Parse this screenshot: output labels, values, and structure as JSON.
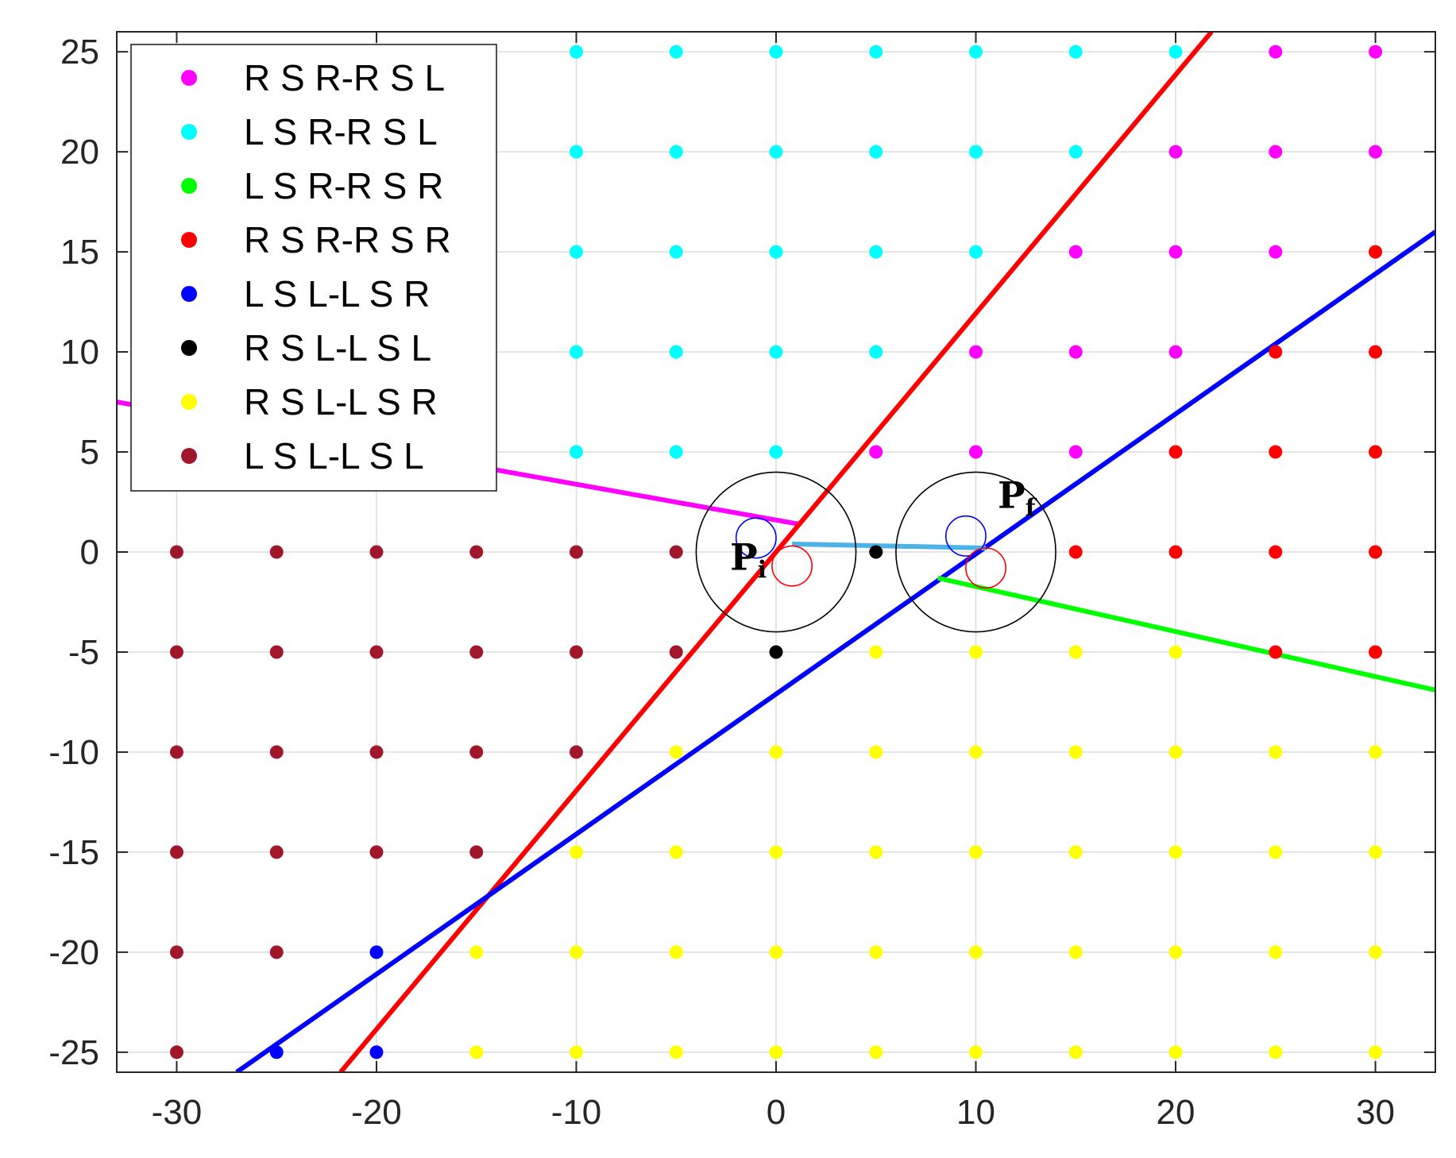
{
  "chart_data": {
    "type": "scatter",
    "xlim": [
      -33,
      33
    ],
    "ylim": [
      -26,
      26
    ],
    "xticks": [
      -30,
      -20,
      -10,
      0,
      10,
      20,
      30
    ],
    "yticks": [
      -25,
      -20,
      -15,
      -10,
      -5,
      0,
      5,
      10,
      15,
      20,
      25
    ],
    "xtick_labels": [
      "-30",
      "-20",
      "-10",
      "0",
      "10",
      "20",
      "30"
    ],
    "ytick_labels": [
      "-25",
      "-20",
      "-15",
      "-10",
      "-5",
      "0",
      "5",
      "10",
      "15",
      "20",
      "25"
    ],
    "grid": true,
    "legend_position": "top-left",
    "series": [
      {
        "name": "R S R-R S L",
        "color": "#ff00ff",
        "points": [
          [
            25,
            25
          ],
          [
            30,
            25
          ],
          [
            20,
            20
          ],
          [
            25,
            20
          ],
          [
            30,
            20
          ],
          [
            15,
            15
          ],
          [
            20,
            15
          ],
          [
            25,
            15
          ],
          [
            10,
            10
          ],
          [
            15,
            10
          ],
          [
            20,
            10
          ],
          [
            5,
            5
          ],
          [
            10,
            5
          ],
          [
            15,
            5
          ]
        ]
      },
      {
        "name": "L S R-R S L",
        "color": "#00ffff",
        "points": [
          [
            -10,
            25
          ],
          [
            -5,
            25
          ],
          [
            0,
            25
          ],
          [
            5,
            25
          ],
          [
            10,
            25
          ],
          [
            15,
            25
          ],
          [
            20,
            25
          ],
          [
            -10,
            20
          ],
          [
            -5,
            20
          ],
          [
            0,
            20
          ],
          [
            5,
            20
          ],
          [
            10,
            20
          ],
          [
            15,
            20
          ],
          [
            -10,
            15
          ],
          [
            -5,
            15
          ],
          [
            0,
            15
          ],
          [
            5,
            15
          ],
          [
            10,
            15
          ],
          [
            -10,
            10
          ],
          [
            -5,
            10
          ],
          [
            0,
            10
          ],
          [
            5,
            10
          ],
          [
            -10,
            5
          ],
          [
            -5,
            5
          ],
          [
            0,
            5
          ]
        ]
      },
      {
        "name": "L S R-R S R",
        "color": "#00ff00",
        "points": []
      },
      {
        "name": "R S R-R S R",
        "color": "#ff0000",
        "points": [
          [
            30,
            15
          ],
          [
            25,
            10
          ],
          [
            30,
            10
          ],
          [
            20,
            5
          ],
          [
            25,
            5
          ],
          [
            30,
            5
          ],
          [
            15,
            0
          ],
          [
            20,
            0
          ],
          [
            25,
            0
          ],
          [
            30,
            0
          ],
          [
            25,
            -5
          ],
          [
            30,
            -5
          ]
        ]
      },
      {
        "name": "L S L-L S R",
        "color": "#0000ff",
        "points": [
          [
            -20,
            -20
          ],
          [
            -25,
            -25
          ],
          [
            -20,
            -25
          ]
        ]
      },
      {
        "name": "R S L-L S L",
        "color": "#000000",
        "points": [
          [
            5,
            0
          ],
          [
            0,
            -5
          ]
        ]
      },
      {
        "name": "R S L-L S R",
        "color": "#ffff00",
        "points": [
          [
            5,
            -5
          ],
          [
            10,
            -5
          ],
          [
            15,
            -5
          ],
          [
            20,
            -5
          ],
          [
            -5,
            -10
          ],
          [
            0,
            -10
          ],
          [
            5,
            -10
          ],
          [
            10,
            -10
          ],
          [
            15,
            -10
          ],
          [
            20,
            -10
          ],
          [
            25,
            -10
          ],
          [
            30,
            -10
          ],
          [
            -10,
            -15
          ],
          [
            -5,
            -15
          ],
          [
            0,
            -15
          ],
          [
            5,
            -15
          ],
          [
            10,
            -15
          ],
          [
            15,
            -15
          ],
          [
            20,
            -15
          ],
          [
            25,
            -15
          ],
          [
            30,
            -15
          ],
          [
            -15,
            -20
          ],
          [
            -10,
            -20
          ],
          [
            -5,
            -20
          ],
          [
            0,
            -20
          ],
          [
            5,
            -20
          ],
          [
            10,
            -20
          ],
          [
            15,
            -20
          ],
          [
            20,
            -20
          ],
          [
            25,
            -20
          ],
          [
            30,
            -20
          ],
          [
            -15,
            -25
          ],
          [
            -10,
            -25
          ],
          [
            -5,
            -25
          ],
          [
            0,
            -25
          ],
          [
            5,
            -25
          ],
          [
            10,
            -25
          ],
          [
            15,
            -25
          ],
          [
            20,
            -25
          ],
          [
            25,
            -25
          ],
          [
            30,
            -25
          ]
        ]
      },
      {
        "name": "L S L-L S L",
        "color": "#a0162b",
        "points": [
          [
            -30,
            0
          ],
          [
            -25,
            0
          ],
          [
            -20,
            0
          ],
          [
            -15,
            0
          ],
          [
            -10,
            0
          ],
          [
            -5,
            0
          ],
          [
            -30,
            -5
          ],
          [
            -25,
            -5
          ],
          [
            -20,
            -5
          ],
          [
            -15,
            -5
          ],
          [
            -10,
            -5
          ],
          [
            -5,
            -5
          ],
          [
            -30,
            -10
          ],
          [
            -25,
            -10
          ],
          [
            -20,
            -10
          ],
          [
            -15,
            -10
          ],
          [
            -10,
            -10
          ],
          [
            -30,
            -15
          ],
          [
            -25,
            -15
          ],
          [
            -20,
            -15
          ],
          [
            -15,
            -15
          ],
          [
            -30,
            -20
          ],
          [
            -25,
            -20
          ],
          [
            -30,
            -25
          ]
        ]
      }
    ],
    "lines": [
      {
        "color": "#ff00ff",
        "from": [
          -33,
          7.5
        ],
        "to": [
          1.1,
          1.4
        ]
      },
      {
        "color": "#ff0000",
        "from": [
          -21.8,
          -26
        ],
        "to": [
          21.8,
          26
        ]
      },
      {
        "color": "#0000ff",
        "from": [
          -27,
          -26
        ],
        "to": [
          33,
          16
        ]
      },
      {
        "color": "#00ff00",
        "from": [
          8.1,
          -1.3
        ],
        "to": [
          33,
          -6.9
        ]
      },
      {
        "color": "#4db3e6",
        "from": [
          0.8,
          0.4
        ],
        "to": [
          10.5,
          0.2
        ]
      }
    ],
    "circles": [
      {
        "color": "#000000",
        "center": [
          0,
          0
        ],
        "radius": 4
      },
      {
        "color": "#000000",
        "center": [
          10,
          0
        ],
        "radius": 4
      },
      {
        "color": "#0000ff",
        "center": [
          -1,
          0.7
        ],
        "radius": 1
      },
      {
        "color": "#ff0000",
        "center": [
          0.8,
          -0.7
        ],
        "radius": 1
      },
      {
        "color": "#0000ff",
        "center": [
          9.5,
          0.8
        ],
        "radius": 1
      },
      {
        "color": "#ff0000",
        "center": [
          10.5,
          -0.8
        ],
        "radius": 1
      }
    ],
    "annotations": [
      {
        "label": "P",
        "subscript": "i",
        "at": [
          -2.3,
          -0.9
        ]
      },
      {
        "label": "P",
        "subscript": "f",
        "at": [
          11.1,
          2.2
        ]
      }
    ]
  }
}
